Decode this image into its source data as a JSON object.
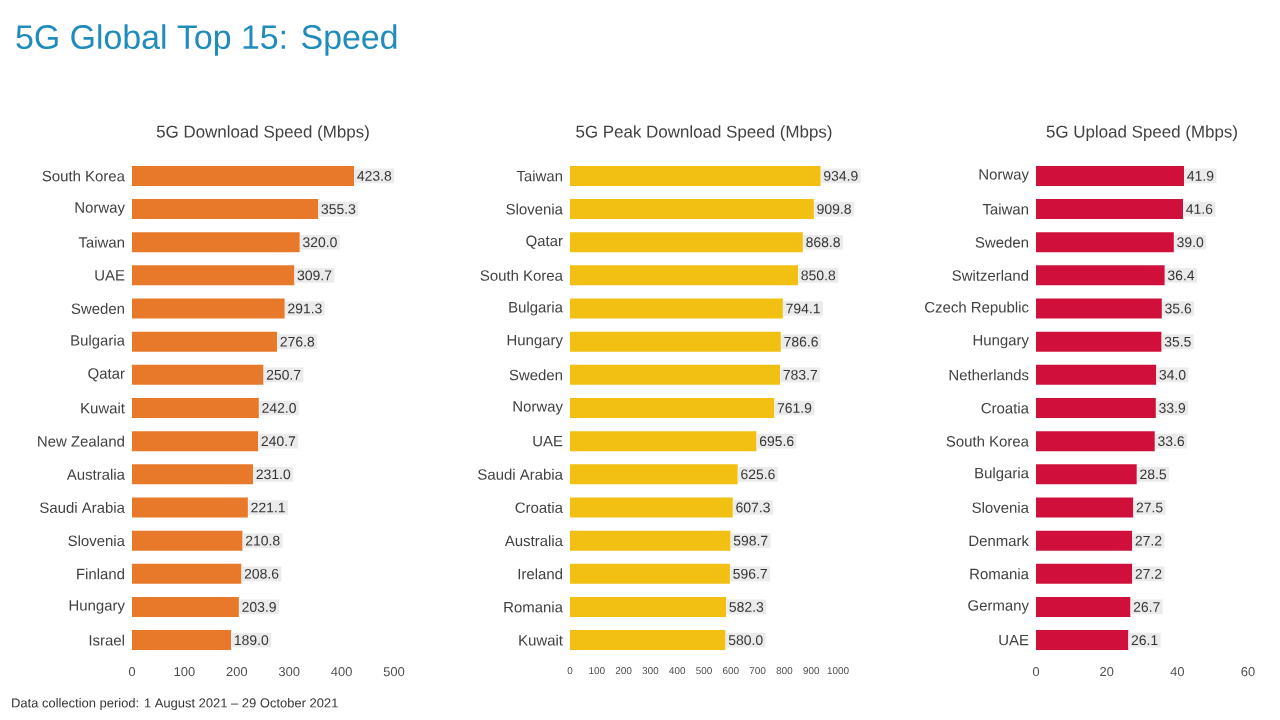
{
  "chart_data": [
    {
      "type": "bar",
      "orientation": "horizontal",
      "title": "5G Global Top 15: Speed",
      "subtitle": "5G Download Speed (Mbps)",
      "categories": [
        "South Korea",
        "Norway",
        "Taiwan",
        "UAE",
        "Sweden",
        "Bulgaria",
        "Qatar",
        "Kuwait",
        "New Zealand",
        "Australia",
        "Saudi Arabia",
        "Slovenia",
        "Finland",
        "Hungary",
        "Israel"
      ],
      "values": [
        423.8,
        355.3,
        320.0,
        309.7,
        291.3,
        276.8,
        250.7,
        242.0,
        240.7,
        231.0,
        221.1,
        210.8,
        208.6,
        203.9,
        189.0
      ],
      "value_labels": [
        "423.8",
        "355.3",
        "320.0",
        "309.7",
        "291.3",
        "276.8",
        "250.7",
        "242.0",
        "240.7",
        "231.0",
        "221.1",
        "210.8",
        "208.6",
        "203.9",
        "189.0"
      ],
      "color": "#e8782a",
      "xlim": [
        0,
        500
      ],
      "xticks": [
        0,
        100,
        200,
        300,
        400,
        500
      ],
      "annotations": [
        "Data collection period: 1 August 2021 – 29 October 2021"
      ]
    },
    {
      "type": "bar",
      "orientation": "horizontal",
      "title": "5G Peak Download Speed (Mbps)",
      "categories": [
        "Taiwan",
        "Slovenia",
        "Qatar",
        "South Korea",
        "Bulgaria",
        "Hungary",
        "Sweden",
        "Norway",
        "UAE",
        "Saudi Arabia",
        "Croatia",
        "Australia",
        "Ireland",
        "Romania",
        "Kuwait"
      ],
      "values": [
        934.9,
        909.8,
        868.8,
        850.8,
        794.1,
        786.6,
        783.7,
        761.9,
        695.6,
        625.6,
        607.3,
        598.7,
        596.7,
        582.3,
        580.0
      ],
      "value_labels": [
        "934.9",
        "909.8",
        "868.8",
        "850.8",
        "794.1",
        "786.6",
        "783.7",
        "761.9",
        "695.6",
        "625.6",
        "607.3",
        "598.7",
        "596.7",
        "582.3",
        "580.0"
      ],
      "color": "#f2c012",
      "xlim": [
        0,
        1000
      ],
      "xticks": [
        0,
        100,
        200,
        300,
        400,
        500,
        600,
        700,
        800,
        900,
        1000
      ]
    },
    {
      "type": "bar",
      "orientation": "horizontal",
      "title": "5G Upload Speed (Mbps)",
      "categories": [
        "Norway",
        "Taiwan",
        "Sweden",
        "Switzerland",
        "Czech Republic",
        "Hungary",
        "Netherlands",
        "Croatia",
        "South Korea",
        "Bulgaria",
        "Slovenia",
        "Denmark",
        "Romania",
        "Germany",
        "UAE"
      ],
      "values": [
        41.9,
        41.6,
        39.0,
        36.4,
        35.6,
        35.5,
        34.0,
        33.9,
        33.6,
        28.5,
        27.5,
        27.2,
        27.2,
        26.7,
        26.1
      ],
      "value_labels": [
        "41.9",
        "41.6",
        "39.0",
        "36.4",
        "35.6",
        "35.5",
        "34.0",
        "33.9",
        "33.6",
        "28.5",
        "27.5",
        "27.2",
        "27.2",
        "26.7",
        "26.1"
      ],
      "color": "#d0103a",
      "xlim": [
        0,
        60
      ],
      "xticks": [
        0,
        20,
        40,
        60
      ]
    }
  ]
}
